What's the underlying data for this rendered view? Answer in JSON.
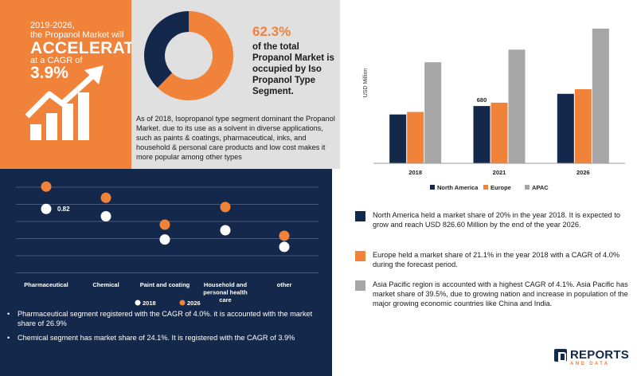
{
  "orange_panel": {
    "line1": "2019-2026,",
    "line2": "the Propanol Market will",
    "headline": "ACCELERATE",
    "line3": "at a CAGR of",
    "cagr": "3.9%"
  },
  "share_panel": {
    "percent": "62.3%",
    "statement": "of the total Propanol Market is occupied by Iso Propanol Type Segment.",
    "description": "As of 2018, Isopropanol type segment dominant the Propanol Market. due to its use as a solvent in diverse applications, such as paints & coatings, pharmaceutical, inks, and household & personal care products and low cost makes it more popular among other types",
    "donut_share": 0.623,
    "colors": {
      "share": "#f0823a",
      "rest": "#13284a",
      "hole": "#ffffff"
    }
  },
  "region_notes": [
    {
      "color": "#13284a",
      "text": "North America held a market share of 20% in the year 2018. It is expected to grow and reach USD 826.60 Million by the end of the year 2026."
    },
    {
      "color": "#f0823a",
      "text": "Europe held a market share of 21.1% in the year 2018 with a CAGR of 4.0% during the forecast period."
    },
    {
      "color": "#a6a6a6",
      "text": "Asia Pacific region is accounted with a highest CAGR of 4.1%. Asia Pacific has market share of 39.5%, due to growing nation and increase in population of the major growing economic countries like China and India."
    }
  ],
  "segment_notes": [
    "Pharmaceutical segment registered with the CAGR of 4.0%. it is accounted with the market share of 26.9%",
    "Chemical segment has market share of 24.1%. It is registered with the CAGR of 3.9%"
  ],
  "logo": {
    "name": "REPORTS",
    "tag": "AND DATA"
  },
  "chart_data": [
    {
      "type": "bar",
      "title": "",
      "xlabel": "",
      "ylabel": "USD Million",
      "categories": [
        "2018",
        "2021",
        "2026"
      ],
      "series": [
        {
          "name": "North America",
          "color": "#13284a",
          "values": [
            580,
            680,
            825
          ]
        },
        {
          "name": "Europe",
          "color": "#f0823a",
          "values": [
            610,
            720,
            880
          ]
        },
        {
          "name": "APAC",
          "color": "#a6a6a6",
          "values": [
            1200,
            1350,
            1600
          ]
        }
      ],
      "annotations": [
        {
          "category": "2021",
          "series": "North America",
          "label": "680"
        }
      ],
      "ylim": [
        0,
        1750
      ],
      "grid": false,
      "legend": "bottom"
    },
    {
      "type": "scatter",
      "title": "",
      "xlabel": "",
      "ylabel": "",
      "categories": [
        "Pharmaceutical",
        "Chemical",
        "Paint and coating",
        "Household and personal health care",
        "other"
      ],
      "series": [
        {
          "name": "2018",
          "color": "#ffffff",
          "values": [
            0.82,
            0.74,
            0.49,
            0.59,
            0.41
          ]
        },
        {
          "name": "2026",
          "color": "#f0823a",
          "values": [
            1.06,
            0.94,
            0.65,
            0.84,
            0.53
          ]
        }
      ],
      "annotations": [
        {
          "category": "Pharmaceutical",
          "series": "2018",
          "label": "0.82"
        }
      ],
      "ylim": [
        0.1,
        1.2
      ],
      "grid": true,
      "legend": "bottom"
    }
  ]
}
